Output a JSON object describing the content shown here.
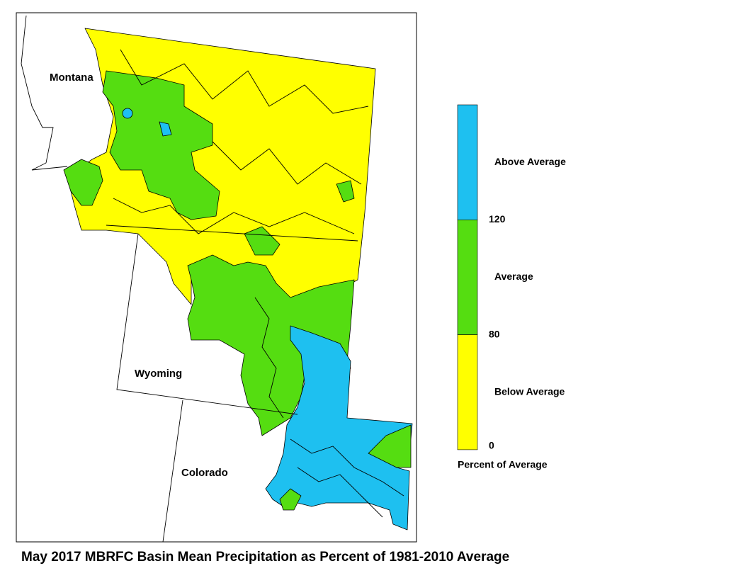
{
  "map": {
    "states": [
      "Montana",
      "Wyoming",
      "Colorado"
    ]
  },
  "legend": {
    "items": [
      {
        "label": "Above Average",
        "color": "#1ec0f0"
      },
      {
        "label": "Average",
        "color": "#55dd11"
      },
      {
        "label": "Below Average",
        "color": "#ffff00"
      }
    ],
    "ticks": [
      120,
      80,
      0
    ],
    "title": "Percent of Average"
  },
  "title": "May 2017 MBRFC Basin Mean Precipitation as Percent of 1981-2010 Average"
}
